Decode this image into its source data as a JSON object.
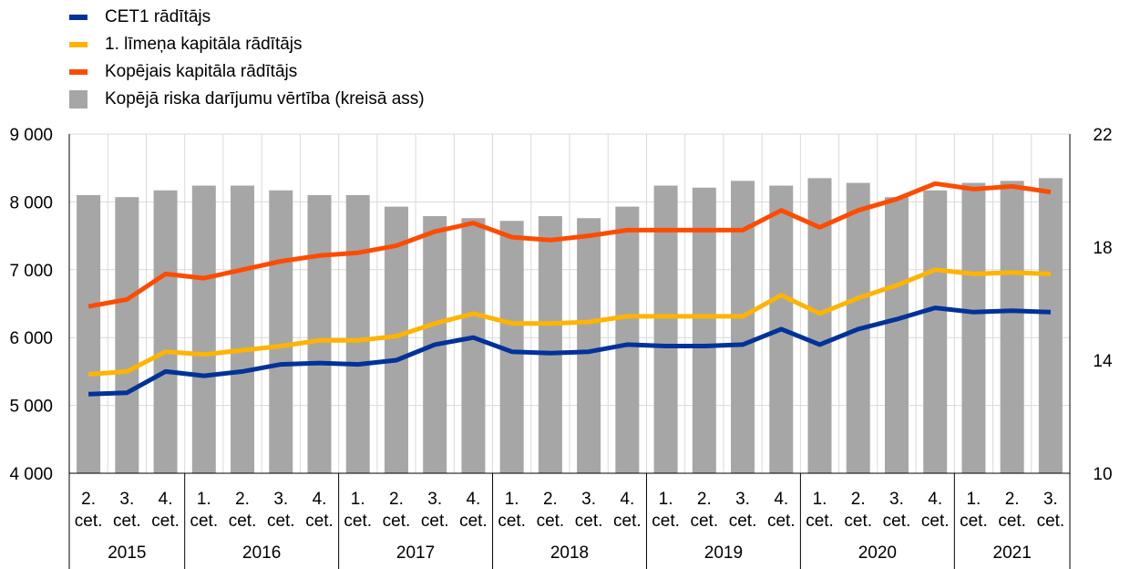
{
  "legend": [
    {
      "label": "CET1 rādītājs",
      "color": "#003299",
      "kind": "line"
    },
    {
      "label": "1. līmeņa kapitāla rādītājs",
      "color": "#FFB400",
      "kind": "line"
    },
    {
      "label": "Kopējais kapitāla rādītājs",
      "color": "#FF4B00",
      "kind": "line"
    },
    {
      "label": "Kopējā riska darījumu vērtība (kreisā ass)",
      "color": "#A6A6A6",
      "kind": "bar"
    }
  ],
  "chart_data": {
    "type": "bar",
    "grid": true,
    "quarters": [
      "2.\ncet.",
      "3.\ncet.",
      "4.\ncet.",
      "1.\ncet.",
      "2.\ncet.",
      "3.\ncet.",
      "4.\ncet.",
      "1.\ncet.",
      "2.\ncet.",
      "3.\ncet.",
      "4.\ncet.",
      "1.\ncet.",
      "2.\ncet.",
      "3.\ncet.",
      "4.\ncet.",
      "1.\ncet.",
      "2.\ncet.",
      "3.\ncet.",
      "4.\ncet.",
      "1.\ncet.",
      "2.\ncet.",
      "3.\ncet.",
      "4.\ncet.",
      "1.\ncet.",
      "2.\ncet.",
      "3.\ncet."
    ],
    "years": [
      {
        "label": "2015",
        "count": 3
      },
      {
        "label": "2016",
        "count": 4
      },
      {
        "label": "2017",
        "count": 4
      },
      {
        "label": "2018",
        "count": 4
      },
      {
        "label": "2019",
        "count": 4
      },
      {
        "label": "2020",
        "count": 4
      },
      {
        "label": "2021",
        "count": 3
      }
    ],
    "left_axis": {
      "min": 4000,
      "max": 9000,
      "ticks": [
        "4 000",
        "5 000",
        "6 000",
        "7 000",
        "8 000",
        "9 000"
      ]
    },
    "right_axis": {
      "min": 10,
      "max": 22,
      "ticks": [
        "10",
        "14",
        "18",
        "22"
      ]
    },
    "bar_series": {
      "name": "Kopējā riska darījumu vērtība (kreisā ass)",
      "axis": "left",
      "color": "#A6A6A6",
      "values": [
        8100,
        8070,
        8170,
        8240,
        8240,
        8170,
        8100,
        8100,
        7930,
        7790,
        7760,
        7720,
        7790,
        7760,
        7930,
        8240,
        8210,
        8310,
        8240,
        8350,
        8280,
        8070,
        8170,
        8280,
        8310,
        8350
      ]
    },
    "line_series": [
      {
        "name": "CET1 rādītājs",
        "axis": "right",
        "color": "#003299",
        "values": [
          12.8,
          12.85,
          13.6,
          13.45,
          13.6,
          13.85,
          13.9,
          13.85,
          14.0,
          14.55,
          14.8,
          14.3,
          14.25,
          14.3,
          14.55,
          14.5,
          14.5,
          14.55,
          15.1,
          14.55,
          15.1,
          15.45,
          15.85,
          15.7,
          15.75,
          15.7
        ]
      },
      {
        "name": "1. līmeņa kapitāla rādītājs",
        "axis": "right",
        "color": "#FFB400",
        "values": [
          13.5,
          13.6,
          14.3,
          14.2,
          14.35,
          14.5,
          14.7,
          14.7,
          14.85,
          15.3,
          15.65,
          15.3,
          15.3,
          15.35,
          15.55,
          15.55,
          15.55,
          15.55,
          16.3,
          15.65,
          16.2,
          16.65,
          17.2,
          17.05,
          17.1,
          17.05
        ]
      },
      {
        "name": "Kopējais kapitāla rādītājs",
        "axis": "right",
        "color": "#FF4B00",
        "values": [
          15.9,
          16.15,
          17.05,
          16.9,
          17.2,
          17.5,
          17.7,
          17.8,
          18.05,
          18.55,
          18.85,
          18.35,
          18.25,
          18.4,
          18.6,
          18.6,
          18.6,
          18.6,
          19.3,
          18.7,
          19.3,
          19.7,
          20.25,
          20.05,
          20.15,
          19.95
        ]
      }
    ]
  }
}
